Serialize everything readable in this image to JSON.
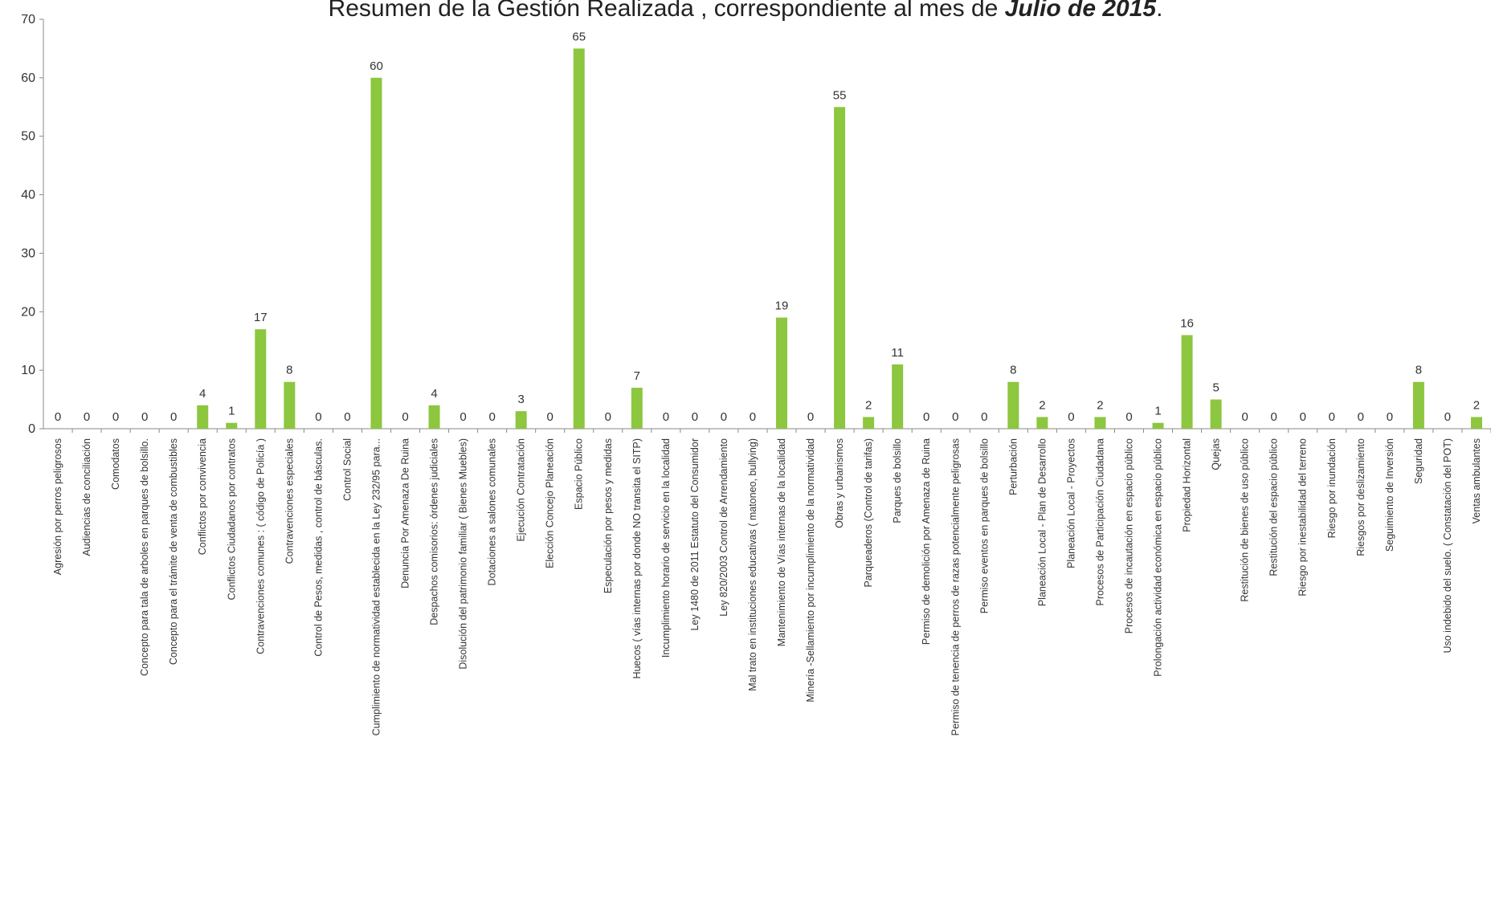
{
  "chart_data": {
    "type": "bar",
    "title_prefix": "Resumen de  la Gestión Realizada , correspondiente al mes  de ",
    "title_emphasis": "Julio de 2015",
    "title_suffix": ".",
    "ylim": [
      0,
      70
    ],
    "yticks": [
      0,
      10,
      20,
      30,
      40,
      50,
      60,
      70
    ],
    "bar_color": "#8dc63f",
    "categories": [
      "Agresión por perros peligrosos",
      "Audiencias de conciliación",
      "Comodatos",
      "Concepto para  tala de arboles en parques de bolsillo.",
      "Concepto para el trámite de venta de combustibles",
      "Conflictos  por convivencia",
      "Conflictos Ciudadanos  por contratos",
      "Contravenciones  comunes : ( código de Policía )",
      "Contravenciones especiales",
      "Control de Pesos, medidas , control de básculas.",
      "Control Social",
      "Cumplimiento de normatividad establecida en  la Ley 232/95 para...",
      "Denuncia Por Amenaza De Ruina",
      "Despachos comisorios:  órdenes judiciales",
      "Disolución del patrimonio familiar ( Bienes Muebles)",
      "Dotaciones a salones comunales",
      "Ejecución Contratación",
      "Elección Concejo Planeación",
      "Espacio Público",
      "Especulación por pesos y medidas",
      "Huecos ( vías internas por donde NO transita el SITP)",
      "Incumplimiento horario de servicio en la localidad",
      "Ley 1480 de 2011 Estatuto del Consumidor",
      "Ley 820/2003 Control de Arrendamiento",
      "Mal trato en  instituciones educativas ( matoneo, bullying)",
      "Mantenimiento de Vías internas de la localidad",
      "Minería -Sellamiento por incumplimiento de la normatividad",
      "Obras y urbanismos",
      "Parqueaderos (Control de tarifas)",
      "Parques de bolsillo",
      "Permiso  de demolición por Amenaza de Ruina",
      "Permiso de tenencia de perros  de razas potencialmente peligrosas",
      "Permiso eventos en parques de bolsillo",
      "Perturbación",
      "Planeación Local - Plan de Desarrollo",
      "Planeación Local - Proyectos",
      "Procesos  de  Participación Ciudadana",
      "Procesos de incautación en espacio público",
      "Prolongación actividad económica en espacio público",
      "Propiedad Horizontal",
      "Quejas",
      "Restitución de bienes de uso público",
      "Restitución del espacio público",
      "Riesgo por inestabilidad del terreno",
      "Riesgo por inundación",
      "Riesgos por deslizamiento",
      "Seguimiento de Inversión",
      "Seguridad",
      "Uso indebido del suelo.  ( Constatación del POT)",
      "Ventas ambulantes"
    ],
    "values": [
      0,
      0,
      0,
      0,
      0,
      4,
      1,
      17,
      8,
      0,
      0,
      60,
      0,
      4,
      0,
      0,
      3,
      0,
      65,
      0,
      7,
      0,
      0,
      0,
      0,
      19,
      0,
      55,
      2,
      11,
      0,
      0,
      0,
      8,
      2,
      0,
      2,
      0,
      1,
      16,
      5,
      0,
      0,
      0,
      0,
      0,
      0,
      8,
      0,
      2
    ]
  }
}
